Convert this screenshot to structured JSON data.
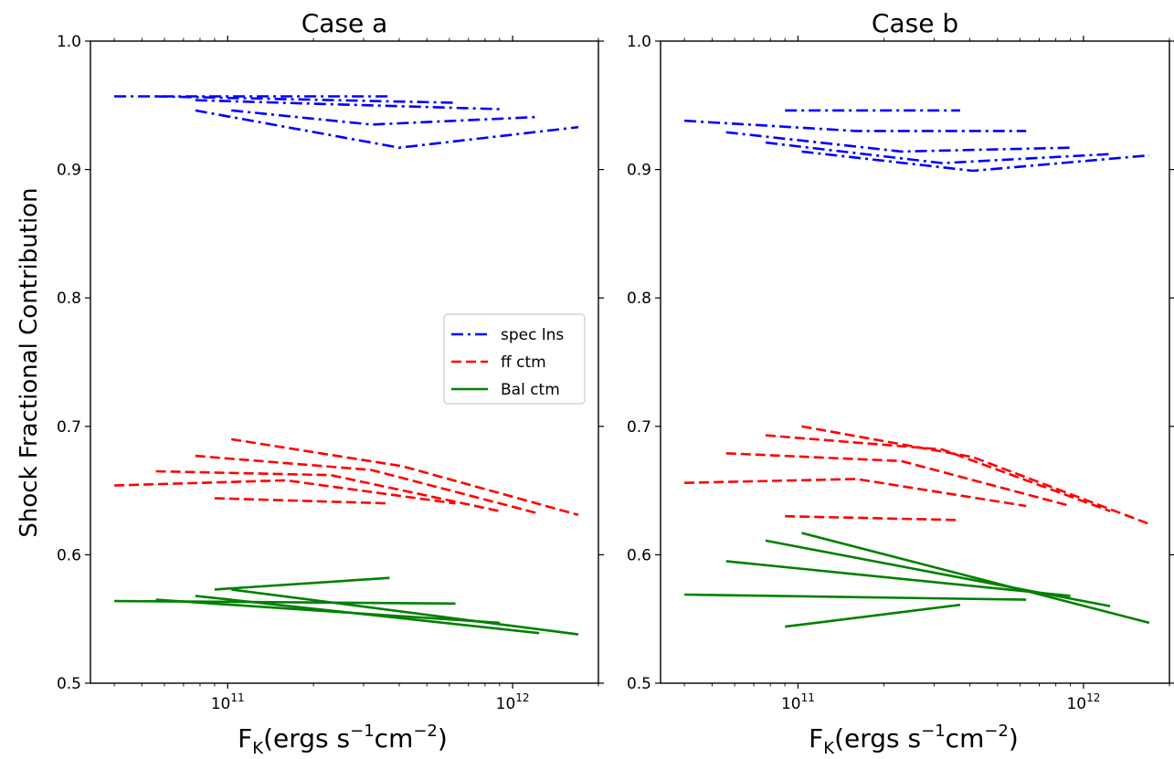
{
  "figure": {
    "ylabel": "Shock Fractional Contribution",
    "xlabel_main": "F",
    "xlabel_sub": "K",
    "xlabel_rest_1": "(ergs s",
    "xlabel_sup_1": "−1",
    "xlabel_rest_2": "cm",
    "xlabel_sup_2": "−2",
    "xlabel_rest_3": ")"
  },
  "legend": {
    "entries": [
      {
        "label": "spec lns",
        "color": "#0000ff",
        "style": "dashdot"
      },
      {
        "label": "ff ctm",
        "color": "#ff0000",
        "style": "dashed"
      },
      {
        "label": "Bal ctm",
        "color": "#008000",
        "style": "solid"
      }
    ]
  },
  "chart_data": [
    {
      "type": "line",
      "title": "Case a",
      "xscale": "log",
      "xlim": [
        33000000000.0,
        2000000000000.0
      ],
      "ylim": [
        0.5,
        1.0
      ],
      "yticks": [
        "0.5",
        "0.6",
        "0.7",
        "0.8",
        "0.9",
        "1.0"
      ],
      "xticks": [
        {
          "base": "10",
          "exp": "11",
          "value": 100000000000.0
        },
        {
          "base": "10",
          "exp": "12",
          "value": 1000000000000.0
        }
      ],
      "legend_position": "center-right",
      "grid": false,
      "series": [
        {
          "group": "spec lns",
          "x": [
            40000000000.0,
            370000000000.0
          ],
          "y": [
            0.957,
            0.957
          ]
        },
        {
          "group": "spec lns",
          "x": [
            56000000000.0,
            630000000000.0
          ],
          "y": [
            0.957,
            0.952
          ]
        },
        {
          "group": "spec lns",
          "x": [
            77000000000.0,
            900000000000.0
          ],
          "y": [
            0.954,
            0.947
          ]
        },
        {
          "group": "spec lns",
          "x": [
            103000000000.0,
            320000000000.0,
            1240000000000.0
          ],
          "y": [
            0.946,
            0.935,
            0.941
          ]
        },
        {
          "group": "spec lns",
          "x": [
            77000000000.0,
            400000000000.0,
            1700000000000.0
          ],
          "y": [
            0.946,
            0.917,
            0.933
          ]
        },
        {
          "group": "ff ctm",
          "x": [
            40000000000.0,
            160000000000.0,
            630000000000.0
          ],
          "y": [
            0.654,
            0.658,
            0.64
          ]
        },
        {
          "group": "ff ctm",
          "x": [
            56000000000.0,
            230000000000.0,
            900000000000.0
          ],
          "y": [
            0.665,
            0.662,
            0.634
          ]
        },
        {
          "group": "ff ctm",
          "x": [
            77000000000.0,
            320000000000.0,
            1240000000000.0
          ],
          "y": [
            0.677,
            0.666,
            0.632
          ]
        },
        {
          "group": "ff ctm",
          "x": [
            103000000000.0,
            410000000000.0,
            1700000000000.0
          ],
          "y": [
            0.69,
            0.669,
            0.631
          ]
        },
        {
          "group": "ff ctm",
          "x": [
            90000000000.0,
            370000000000.0
          ],
          "y": [
            0.644,
            0.64
          ]
        },
        {
          "group": "Bal ctm",
          "x": [
            40000000000.0,
            630000000000.0
          ],
          "y": [
            0.564,
            0.562
          ]
        },
        {
          "group": "Bal ctm",
          "x": [
            56000000000.0,
            900000000000.0
          ],
          "y": [
            0.565,
            0.547
          ]
        },
        {
          "group": "Bal ctm",
          "x": [
            77000000000.0,
            1240000000000.0
          ],
          "y": [
            0.568,
            0.539
          ]
        },
        {
          "group": "Bal ctm",
          "x": [
            103000000000.0,
            1700000000000.0
          ],
          "y": [
            0.573,
            0.538
          ]
        },
        {
          "group": "Bal ctm",
          "x": [
            90000000000.0,
            370000000000.0
          ],
          "y": [
            0.573,
            0.582
          ]
        }
      ]
    },
    {
      "type": "line",
      "title": "Case b",
      "xscale": "log",
      "xlim": [
        33000000000.0,
        2000000000000.0
      ],
      "ylim": [
        0.5,
        1.0
      ],
      "yticks": [
        "0.5",
        "0.6",
        "0.7",
        "0.8",
        "0.9",
        "1.0"
      ],
      "xticks": [
        {
          "base": "10",
          "exp": "11",
          "value": 100000000000.0
        },
        {
          "base": "10",
          "exp": "12",
          "value": 1000000000000.0
        }
      ],
      "grid": false,
      "series": [
        {
          "group": "spec lns",
          "x": [
            90000000000.0,
            370000000000.0
          ],
          "y": [
            0.946,
            0.946
          ]
        },
        {
          "group": "spec lns",
          "x": [
            40000000000.0,
            160000000000.0,
            630000000000.0
          ],
          "y": [
            0.938,
            0.93,
            0.93
          ]
        },
        {
          "group": "spec lns",
          "x": [
            56000000000.0,
            230000000000.0,
            900000000000.0
          ],
          "y": [
            0.929,
            0.914,
            0.917
          ]
        },
        {
          "group": "spec lns",
          "x": [
            77000000000.0,
            320000000000.0,
            1240000000000.0
          ],
          "y": [
            0.921,
            0.905,
            0.912
          ]
        },
        {
          "group": "spec lns",
          "x": [
            103000000000.0,
            410000000000.0,
            1700000000000.0
          ],
          "y": [
            0.914,
            0.899,
            0.911
          ]
        },
        {
          "group": "ff ctm",
          "x": [
            40000000000.0,
            160000000000.0,
            630000000000.0
          ],
          "y": [
            0.656,
            0.659,
            0.638
          ]
        },
        {
          "group": "ff ctm",
          "x": [
            56000000000.0,
            230000000000.0,
            900000000000.0
          ],
          "y": [
            0.679,
            0.673,
            0.638
          ]
        },
        {
          "group": "ff ctm",
          "x": [
            77000000000.0,
            320000000000.0,
            1240000000000.0
          ],
          "y": [
            0.693,
            0.682,
            0.634
          ]
        },
        {
          "group": "ff ctm",
          "x": [
            103000000000.0,
            410000000000.0,
            1700000000000.0
          ],
          "y": [
            0.7,
            0.676,
            0.624
          ]
        },
        {
          "group": "ff ctm",
          "x": [
            90000000000.0,
            370000000000.0
          ],
          "y": [
            0.63,
            0.627
          ]
        },
        {
          "group": "Bal ctm",
          "x": [
            40000000000.0,
            630000000000.0
          ],
          "y": [
            0.569,
            0.565
          ]
        },
        {
          "group": "Bal ctm",
          "x": [
            56000000000.0,
            900000000000.0
          ],
          "y": [
            0.595,
            0.568
          ]
        },
        {
          "group": "Bal ctm",
          "x": [
            77000000000.0,
            1240000000000.0
          ],
          "y": [
            0.611,
            0.56
          ]
        },
        {
          "group": "Bal ctm",
          "x": [
            103000000000.0,
            1700000000000.0
          ],
          "y": [
            0.617,
            0.547
          ]
        },
        {
          "group": "Bal ctm",
          "x": [
            90000000000.0,
            370000000000.0
          ],
          "y": [
            0.544,
            0.561
          ]
        }
      ]
    }
  ]
}
